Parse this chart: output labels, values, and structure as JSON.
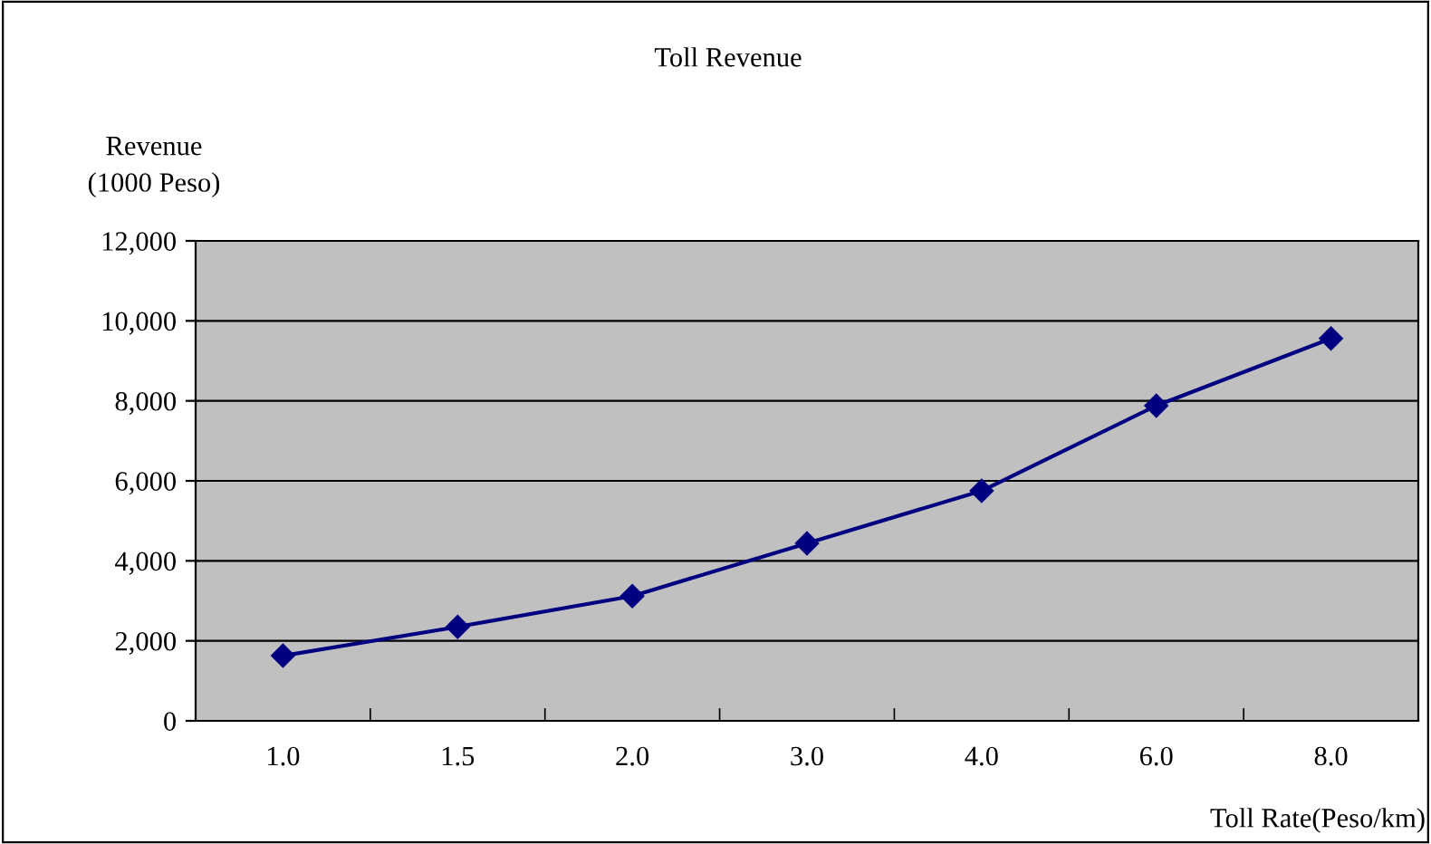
{
  "chart_data": {
    "type": "line",
    "title": "Toll Revenue",
    "ylabel": "Revenue\n(1000 Peso)",
    "xlabel": "Toll Rate(Peso/km)",
    "categories": [
      "1.0",
      "1.5",
      "2.0",
      "3.0",
      "4.0",
      "6.0",
      "8.0"
    ],
    "series": [
      {
        "color": "#000080",
        "values": [
          1630,
          2350,
          3120,
          4440,
          5750,
          7880,
          9560
        ]
      }
    ],
    "ylim": [
      0,
      12000
    ],
    "yticks": [
      0,
      {
        "value": 2000,
        "label": "2,000"
      },
      {
        "value": 4000,
        "label": "4,000"
      },
      {
        "value": 6000,
        "label": "6,000"
      },
      {
        "value": 8000,
        "label": "8,000"
      },
      {
        "value": 10000,
        "label": "10,000"
      },
      {
        "value": 12000,
        "label": "12,000"
      }
    ],
    "grid": "y",
    "marker": "diamond",
    "line_style": "solid",
    "legend": false
  }
}
